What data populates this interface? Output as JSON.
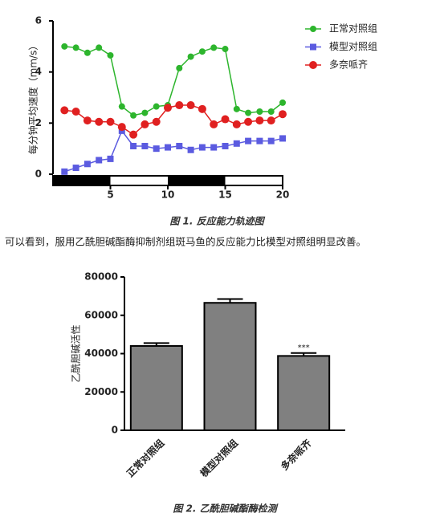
{
  "chart_data": [
    {
      "type": "line",
      "y_label": "每分钟平均速度（mm/s）",
      "x": [
        1,
        2,
        3,
        4,
        5,
        6,
        7,
        8,
        9,
        10,
        11,
        12,
        13,
        14,
        15,
        16,
        17,
        18,
        19,
        20
      ],
      "xlim": [
        0,
        20
      ],
      "xticks": [
        5,
        10,
        15,
        20
      ],
      "ylim": [
        0,
        6
      ],
      "yticks": [
        0,
        2,
        4,
        6
      ],
      "series": [
        {
          "name": "正常对照组",
          "color": "#2db52d",
          "marker": "circle",
          "values": [
            5.0,
            4.95,
            4.75,
            4.95,
            4.65,
            2.65,
            2.3,
            2.4,
            2.65,
            2.7,
            4.15,
            4.6,
            4.8,
            4.95,
            4.9,
            2.55,
            2.4,
            2.45,
            2.45,
            2.8
          ]
        },
        {
          "name": "模型对照组",
          "color": "#5b5be0",
          "marker": "square",
          "values": [
            0.1,
            0.25,
            0.4,
            0.55,
            0.6,
            1.7,
            1.1,
            1.1,
            1.0,
            1.05,
            1.1,
            0.95,
            1.05,
            1.05,
            1.1,
            1.2,
            1.3,
            1.3,
            1.3,
            1.4
          ]
        },
        {
          "name": "多奈哌齐",
          "color": "#e02020",
          "marker": "circle",
          "values": [
            2.5,
            2.45,
            2.1,
            2.05,
            2.05,
            1.85,
            1.55,
            1.95,
            2.05,
            2.6,
            2.7,
            2.7,
            2.55,
            1.95,
            2.15,
            1.95,
            2.05,
            2.1,
            2.1,
            2.35
          ]
        }
      ]
    },
    {
      "type": "bar",
      "y_label": "乙酰胆碱活性",
      "color": "#808080",
      "categories": [
        "正常对照组",
        "模型对照组",
        "多奈哌齐"
      ],
      "values": [
        44000,
        66500,
        38800
      ],
      "errors": [
        1500,
        2000,
        1500
      ],
      "annotations": [
        null,
        null,
        "***"
      ],
      "ylim": [
        0,
        80000
      ],
      "yticks": [
        0,
        20000,
        40000,
        60000,
        80000
      ]
    }
  ],
  "document": {
    "caption_1": "图 1. 反应能力轨迹图",
    "paragraph": "可以看到，服用乙酰胆碱酯酶抑制剂组斑马鱼的反应能力比模型对照组明显改善。",
    "caption_2": "图 2. 乙酰胆碱酯酶检测"
  }
}
